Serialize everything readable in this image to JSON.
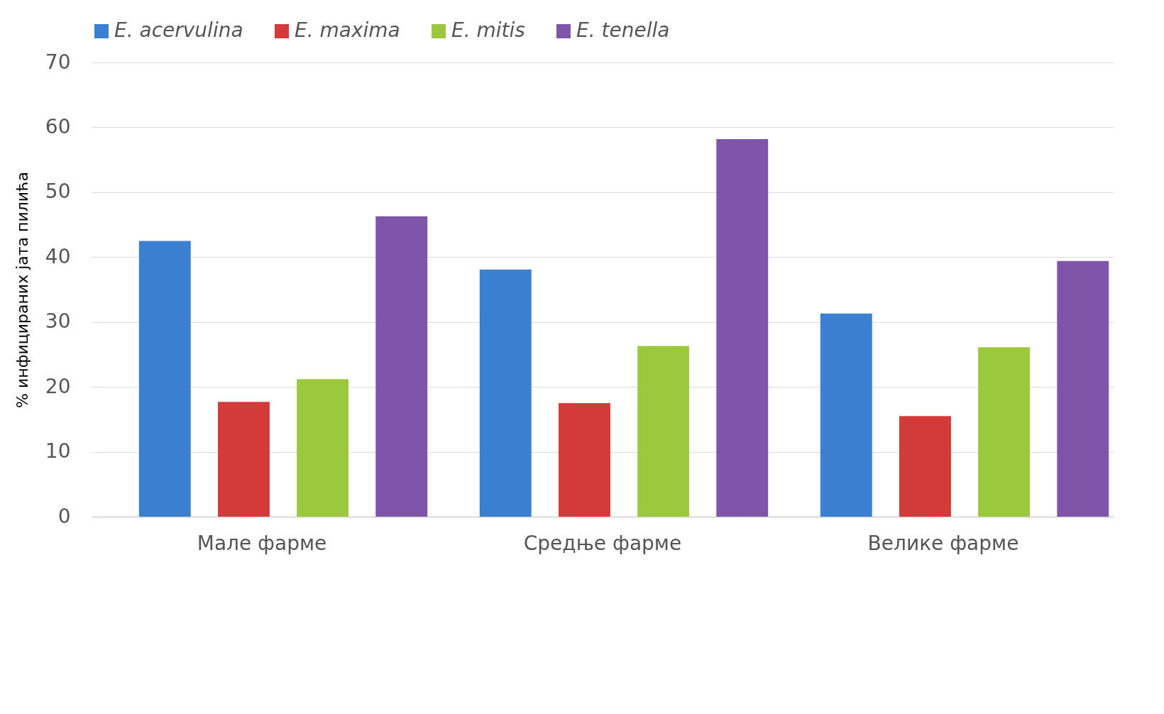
{
  "chart_data": {
    "type": "bar",
    "ylabel": "% инфицираних јата пилића",
    "categories": [
      "Мале фарме",
      "Средње фарме",
      "Велике фарме"
    ],
    "series": [
      {
        "name": "E. acervulina",
        "color": "#3a7fd0",
        "values": [
          42.5,
          38.1,
          31.3
        ]
      },
      {
        "name": "E. maxima",
        "color": "#d43a3a",
        "values": [
          17.7,
          17.5,
          15.5
        ]
      },
      {
        "name": "E. mitis",
        "color": "#9bc83c",
        "values": [
          21.2,
          26.3,
          26.1
        ]
      },
      {
        "name": "E. tenella",
        "color": "#7e55a8",
        "values": [
          46.3,
          58.2,
          39.4
        ]
      }
    ],
    "ylim": [
      0,
      70
    ],
    "yticks": [
      0,
      10,
      20,
      30,
      40,
      50,
      60,
      70
    ],
    "grid": "y",
    "legend": "top"
  }
}
